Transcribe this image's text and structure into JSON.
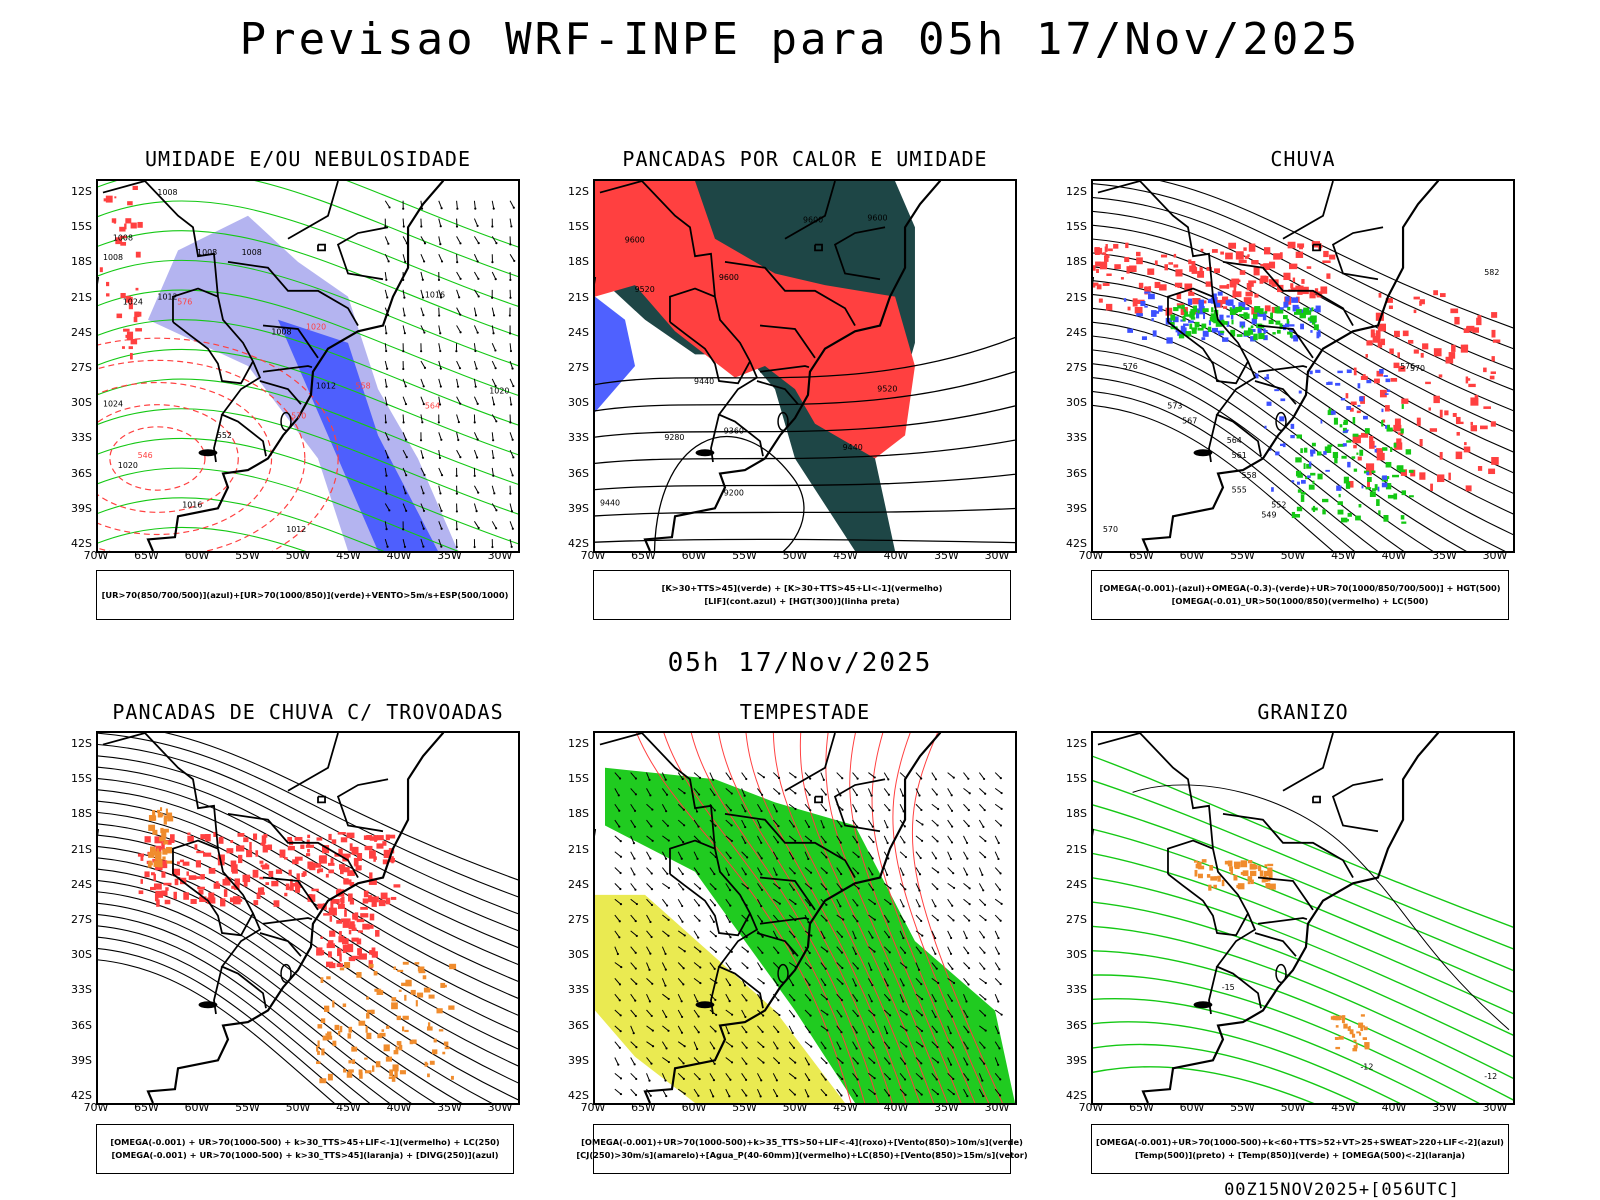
{
  "title": "Previsao WRF-INPE  para 05h 17/Nov/2025",
  "subtitle": "05h 17/Nov/2025",
  "footer": "00Z15NOV2025+[056UTC]",
  "axes": {
    "lat_labels": [
      "12S",
      "15S",
      "18S",
      "21S",
      "24S",
      "27S",
      "30S",
      "33S",
      "36S",
      "39S",
      "42S"
    ],
    "lon_labels": [
      "70W",
      "65W",
      "60W",
      "55W",
      "50W",
      "45W",
      "40W",
      "35W",
      "30W"
    ]
  },
  "colors": {
    "red": "#ff4040",
    "blue": "#3c50ff",
    "lavender": "#b4b4f0",
    "green": "#14c814",
    "dark_teal": "#1e4646",
    "yellow": "#e6e632",
    "orange": "#f08c2d"
  },
  "panels": [
    {
      "title": "UMIDADE E/OU NEBULOSIDADE",
      "legend": [
        "[UR>70(850/700/500)](azul)+[UR>70(1000/850)](verde)+VENTO>5m/s+ESP(500/1000)"
      ],
      "contour_labels": [
        "1008",
        "1008",
        "1008",
        "1008",
        "1012",
        "1016",
        "1020",
        "1024",
        "1012",
        "1008",
        "1020",
        "1024",
        "1016",
        "1012",
        "1008",
        "552",
        "546",
        "570",
        "576",
        "564",
        "558",
        "1020"
      ]
    },
    {
      "title": "PANCADAS POR CALOR E UMIDADE",
      "legend": [
        "[K>30+TTS>45](verde)  +  [K>30+TTS>45+LI<-1](vermelho)",
        "[LIF](cont.azul)  +  [HGT(300)](linha preta)"
      ],
      "contour_labels": [
        "9600",
        "9600",
        "9600",
        "9520",
        "9440",
        "9360",
        "9280",
        "9200",
        "9440",
        "9520",
        "9440",
        "9600"
      ]
    },
    {
      "title": "CHUVA",
      "legend": [
        "[OMEGA(-0.001)-(azul)+OMEGA(-0.3)-(verde)+UR>70(1000/850/700/500)]  +  HGT(500)",
        "[OMEGA(-0.01)_UR>50(1000/850)(vermelho)  +  LC(500)"
      ],
      "contour_labels": [
        "582",
        "576",
        "570",
        "573",
        "567",
        "564",
        "561",
        "558",
        "555",
        "552",
        "549",
        "570",
        "576"
      ]
    },
    {
      "title": "PANCADAS DE CHUVA C/ TROVOADAS",
      "legend": [
        "[OMEGA(-0.001)  +  UR>70(1000-500)  +  k>30_TTS>45+LIF<-1](vermelho)  +  LC(250)",
        "[OMEGA(-0.001)  +  UR>70(1000-500)  +  k>30_TTS>45](laranja)  +  [DIVG(250)](azul)"
      ]
    },
    {
      "title": "TEMPESTADE",
      "legend": [
        "[OMEGA(-0.001)+UR>70(1000-500)+k>35_TTS>50+LIF<-4](roxo)+[Vento(850)>10m/s](verde)",
        "[CJ(250)>30m/s](amarelo)+[Agua_P(40-60mm)](vermelho)+LC(850)+[Vento(850)>15m/s](vetor)"
      ]
    },
    {
      "title": "GRANIZO",
      "legend": [
        "[OMEGA(-0.001)+UR>70(1000-500)+k<60+TTS>52+VT>25+SWEAT>220+LIF<-2](azul)",
        "[Temp(500)](preto)  +  [Temp(850)](verde)  +  [OMEGA(500)<-2](laranja)"
      ],
      "contour_labels": [
        "-15",
        "-12",
        "-12"
      ]
    }
  ]
}
